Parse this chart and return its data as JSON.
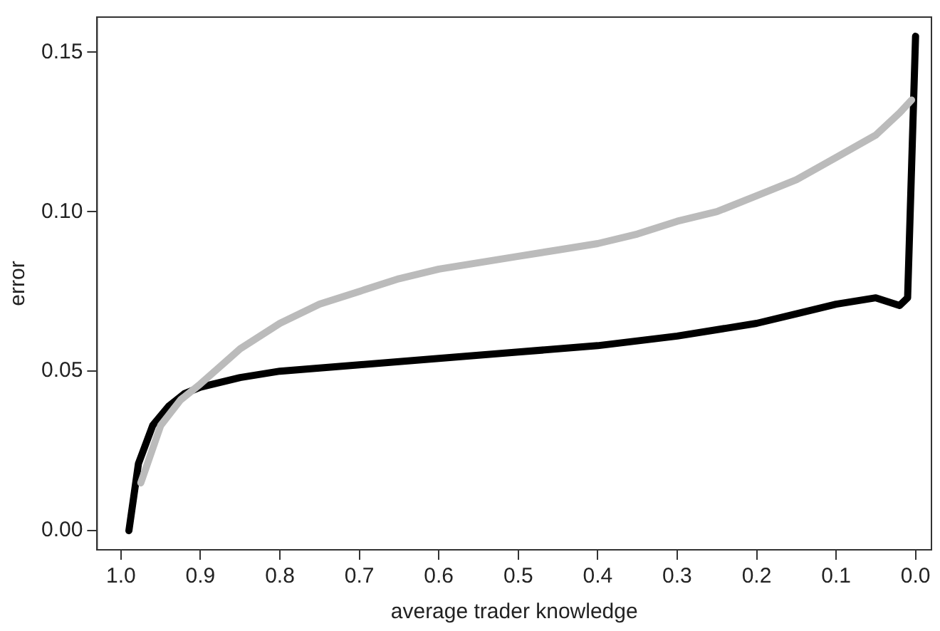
{
  "chart_data": {
    "type": "line",
    "xlabel": "average trader knowledge",
    "ylabel": "error",
    "xlim": [
      1.03,
      -0.02
    ],
    "xticks": [
      {
        "value": 1.0,
        "label": "1.0"
      },
      0.9,
      0.8,
      0.7,
      0.6,
      0.5,
      0.4,
      0.3,
      0.2,
      0.1,
      {
        "value": 0.0,
        "label": "0.0"
      }
    ],
    "ylim": [
      -0.006,
      0.161
    ],
    "yticks": [
      {
        "value": 0,
        "label": "0.00"
      },
      0.05,
      {
        "value": 0.1,
        "label": "0.10"
      },
      0.15
    ],
    "grid": false,
    "legend": false,
    "marker": "none",
    "line_style": "solid",
    "series": [
      {
        "color": "#bbbbbb",
        "x": [
          0.975,
          0.95,
          0.925,
          0.9,
          0.85,
          0.8,
          0.75,
          0.7,
          0.65,
          0.6,
          0.55,
          0.5,
          0.45,
          0.4,
          0.35,
          0.3,
          0.25,
          0.2,
          0.15,
          0.1,
          0.05,
          0.02,
          0.005
        ],
        "values": [
          0.015,
          0.033,
          0.041,
          0.046,
          0.057,
          0.065,
          0.071,
          0.075,
          0.079,
          0.082,
          0.084,
          0.086,
          0.088,
          0.09,
          0.093,
          0.097,
          0.1,
          0.105,
          0.11,
          0.117,
          0.124,
          0.131,
          0.135
        ]
      },
      {
        "color": "#000000",
        "x": [
          0.99,
          0.978,
          0.96,
          0.94,
          0.92,
          0.9,
          0.85,
          0.8,
          0.7,
          0.6,
          0.5,
          0.4,
          0.3,
          0.2,
          0.15,
          0.1,
          0.05,
          0.02,
          0.01,
          0.0
        ],
        "values": [
          0,
          0.021,
          0.033,
          0.039,
          0.043,
          0.045,
          0.048,
          0.05,
          0.052,
          0.054,
          0.056,
          0.058,
          0.061,
          0.065,
          0.068,
          0.071,
          0.073,
          0.0706,
          0.073,
          0.155
        ]
      }
    ]
  }
}
